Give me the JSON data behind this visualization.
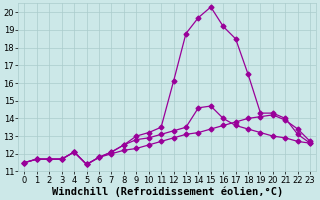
{
  "xlabel": "Windchill (Refroidissement éolien,°C)",
  "xlim": [
    -0.5,
    23.5
  ],
  "ylim": [
    11,
    20.5
  ],
  "yticks": [
    11,
    12,
    13,
    14,
    15,
    16,
    17,
    18,
    19,
    20
  ],
  "xticks": [
    0,
    1,
    2,
    3,
    4,
    5,
    6,
    7,
    8,
    9,
    10,
    11,
    12,
    13,
    14,
    15,
    16,
    17,
    18,
    19,
    20,
    21,
    22,
    23
  ],
  "background_color": "#cce8e8",
  "grid_color": "#aacccc",
  "line_color": "#990099",
  "line1_x": [
    0,
    1,
    2,
    3,
    4,
    5,
    6,
    7,
    8,
    9,
    10,
    11,
    12,
    13,
    14,
    15,
    16,
    17,
    18,
    19,
    20,
    21,
    22,
    23
  ],
  "line1_y": [
    11.5,
    11.7,
    11.7,
    11.7,
    12.1,
    11.4,
    11.8,
    12.0,
    12.2,
    12.3,
    12.5,
    12.7,
    12.9,
    13.1,
    13.2,
    13.4,
    13.6,
    13.8,
    14.0,
    14.1,
    14.2,
    13.9,
    13.4,
    12.7
  ],
  "line2_x": [
    0,
    1,
    2,
    3,
    4,
    5,
    6,
    7,
    8,
    9,
    10,
    11,
    12,
    13,
    14,
    15,
    16,
    17,
    18,
    19,
    20,
    21,
    22,
    23
  ],
  "line2_y": [
    11.5,
    11.7,
    11.7,
    11.7,
    12.1,
    11.4,
    11.8,
    12.1,
    12.5,
    12.8,
    12.9,
    13.1,
    13.3,
    13.5,
    14.6,
    14.7,
    14.0,
    13.6,
    13.4,
    13.2,
    13.0,
    12.9,
    12.7,
    12.6
  ],
  "line3_x": [
    0,
    1,
    2,
    3,
    4,
    5,
    6,
    7,
    8,
    9,
    10,
    11,
    12,
    13,
    14,
    15,
    16,
    17,
    18,
    19,
    20,
    21,
    22,
    23
  ],
  "line3_y": [
    11.5,
    11.7,
    11.7,
    11.7,
    12.1,
    11.4,
    11.8,
    12.1,
    12.5,
    13.0,
    13.2,
    13.5,
    16.1,
    18.8,
    19.7,
    20.3,
    19.2,
    18.5,
    16.5,
    14.3,
    14.3,
    14.0,
    13.1,
    12.6
  ],
  "marker": "D",
  "marker_size": 2.5,
  "line_width": 0.9,
  "tick_fontsize": 6,
  "xlabel_fontsize": 7.5
}
